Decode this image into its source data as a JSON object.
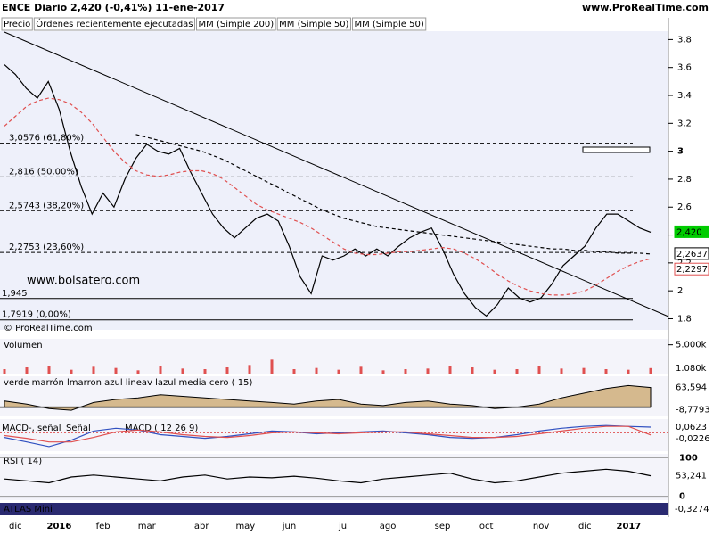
{
  "header": {
    "title": "ENCE  Diario  2,420 (-0,41%)  11-ene-2017",
    "site": "www.ProRealTime.com",
    "copyright": "© ProRealTime.com",
    "watermark": "www.bolsatero.com"
  },
  "legend": [
    "Precio",
    "Órdenes recientemente ejecutadas",
    "MM (Simple 200)",
    "MM (Simple 50)",
    "MM (Simple 50)"
  ],
  "chart_data": [
    {
      "type": "line",
      "categories": [
        null,
        "dic",
        null,
        null,
        null,
        "2016",
        null,
        null,
        null,
        "feb",
        null,
        null,
        null,
        "mar",
        null,
        null,
        null,
        null,
        "abr",
        null,
        null,
        null,
        "may",
        null,
        null,
        null,
        "jun",
        null,
        null,
        null,
        null,
        "jul",
        null,
        null,
        null,
        "ago",
        null,
        null,
        null,
        null,
        "sep",
        null,
        null,
        null,
        "oct",
        null,
        null,
        null,
        null,
        "nov",
        null,
        null,
        null,
        "dic",
        null,
        null,
        null,
        "2017",
        null,
        null
      ],
      "series": [
        {
          "name": "Precio",
          "color": "#000000",
          "values": [
            3.62,
            3.55,
            3.45,
            3.38,
            3.5,
            3.3,
            3.0,
            2.75,
            2.55,
            2.7,
            2.6,
            2.8,
            2.95,
            3.05,
            3.0,
            2.98,
            3.02,
            2.85,
            2.7,
            2.55,
            2.45,
            2.38,
            2.45,
            2.52,
            2.55,
            2.5,
            2.32,
            2.1,
            1.98,
            2.25,
            2.22,
            2.25,
            2.3,
            2.25,
            2.3,
            2.25,
            2.32,
            2.38,
            2.42,
            2.45,
            2.3,
            2.12,
            1.98,
            1.88,
            1.82,
            1.9,
            2.02,
            1.95,
            1.92,
            1.95,
            2.05,
            2.18,
            2.25,
            2.32,
            2.45,
            2.55,
            2.55,
            2.5,
            2.45,
            2.42
          ]
        },
        {
          "name": "MM (Simple 200)",
          "color": "#000000",
          "dash": true,
          "values": [
            null,
            null,
            null,
            null,
            null,
            null,
            null,
            null,
            null,
            null,
            null,
            null,
            3.12,
            3.1,
            3.08,
            3.06,
            3.04,
            3.02,
            3.0,
            2.97,
            2.94,
            2.9,
            2.86,
            2.82,
            2.78,
            2.74,
            2.7,
            2.66,
            2.62,
            2.58,
            2.55,
            2.52,
            2.5,
            2.48,
            2.46,
            2.45,
            2.44,
            2.43,
            2.42,
            2.41,
            2.4,
            2.39,
            2.38,
            2.37,
            2.36,
            2.35,
            2.34,
            2.33,
            2.32,
            2.31,
            2.3,
            2.3,
            2.29,
            2.29,
            2.28,
            2.28,
            2.27,
            2.27,
            2.27,
            2.2637
          ]
        },
        {
          "name": "MM (Simple 50)",
          "color": "#e05050",
          "dash": true,
          "values": [
            3.18,
            3.25,
            3.32,
            3.36,
            3.38,
            3.37,
            3.34,
            3.28,
            3.2,
            3.1,
            3.0,
            2.92,
            2.86,
            2.83,
            2.82,
            2.83,
            2.85,
            2.86,
            2.86,
            2.84,
            2.8,
            2.74,
            2.68,
            2.62,
            2.58,
            2.55,
            2.52,
            2.49,
            2.45,
            2.4,
            2.35,
            2.3,
            2.27,
            2.26,
            2.26,
            2.27,
            2.28,
            2.28,
            2.29,
            2.3,
            2.31,
            2.3,
            2.27,
            2.23,
            2.18,
            2.12,
            2.07,
            2.03,
            2.0,
            1.98,
            1.97,
            1.97,
            1.98,
            2.0,
            2.04,
            2.09,
            2.14,
            2.18,
            2.21,
            2.2297
          ]
        }
      ],
      "ylim": [
        1.72,
        3.86
      ],
      "yticks": [
        {
          "value": 1.8,
          "label": "1,8"
        },
        2,
        {
          "value": 2.2,
          "label": "2,2"
        },
        {
          "value": 2.4,
          "label": "2,4"
        },
        {
          "value": 2.6,
          "label": "2,6"
        },
        {
          "value": 2.8,
          "label": "2,8"
        },
        3,
        {
          "value": 3.2,
          "label": "3,2"
        },
        {
          "value": 3.4,
          "label": "3,4"
        },
        {
          "value": 3.6,
          "label": "3,6"
        },
        {
          "value": 3.8,
          "label": "3,8"
        }
      ],
      "levels": [
        {
          "value": 3.0576,
          "label": "3,0576 (61,80%)"
        },
        {
          "value": 2.816,
          "label": "2,816 (50,00%)"
        },
        {
          "value": 2.5743,
          "label": "2,5743 (38,20%)"
        },
        {
          "value": 2.2753,
          "label": "2,2753 (23,60%)"
        },
        {
          "value": 1.945,
          "label": "1,945"
        },
        {
          "value": 1.7919,
          "label": "1,7919 (0,00%)"
        }
      ],
      "axis_labels": [
        {
          "value": 2.42,
          "label": "2,420",
          "color": "#00cc00"
        },
        {
          "value": 2.2637,
          "label": "2,2637",
          "color": "#000000"
        },
        {
          "value": 2.2297,
          "label": "2,2297",
          "color": "#e05050"
        }
      ]
    },
    {
      "type": "bar",
      "title": "Volumen",
      "color": "#e05050",
      "values": [
        900,
        1200,
        1500,
        800,
        1300,
        1100,
        700,
        1400,
        1000,
        900,
        1200,
        1600,
        2500,
        900,
        1100,
        800,
        1300,
        700,
        900,
        1000,
        1400,
        1200,
        800,
        900,
        1500,
        1000,
        1100,
        900,
        800,
        1080
      ],
      "value_labels": [
        null,
        null,
        null,
        null,
        null,
        null,
        null,
        null,
        null,
        null,
        null,
        null,
        null,
        null,
        null,
        null,
        null,
        null,
        null,
        null,
        null,
        null,
        null,
        null,
        null,
        null,
        null,
        null,
        null,
        "1.080k"
      ],
      "ylim": [
        0,
        6000
      ],
      "yticks": [
        {
          "value": 5000,
          "label": "5.000k"
        }
      ]
    },
    {
      "type": "area",
      "title": "verde  marrón  lmarron  azul  lineav  lazul  media  cero ( 15)",
      "series": [
        {
          "name": "verde",
          "color": "#c8a060",
          "values": [
            20,
            10,
            -5,
            -10,
            15,
            25,
            30,
            40,
            35,
            30,
            25,
            20,
            15,
            10,
            20,
            25,
            10,
            5,
            15,
            20,
            10,
            5,
            -5,
            0,
            10,
            30,
            45,
            60,
            70,
            63.594
          ]
        }
      ],
      "value_labels": [
        "63,594",
        "-8,7793"
      ],
      "extra": [
        -8.7793
      ],
      "ylim": [
        -30,
        100
      ]
    },
    {
      "type": "line",
      "title": "MACD ( 12 26 9)",
      "legend": [
        "MACD-, señal",
        "Señal"
      ],
      "series": [
        {
          "name": "MACD",
          "color": "#3050c0",
          "values": [
            -0.05,
            -0.1,
            -0.15,
            -0.08,
            0.02,
            0.05,
            0.03,
            -0.02,
            -0.04,
            -0.06,
            -0.04,
            -0.01,
            0.02,
            0.01,
            -0.01,
            0,
            0.01,
            0.02,
            0,
            -0.02,
            -0.05,
            -0.06,
            -0.05,
            -0.02,
            0.02,
            0.05,
            0.07,
            0.08,
            0.07,
            0.0623
          ]
        },
        {
          "name": "Señal",
          "color": "#e05050",
          "values": [
            -0.03,
            -0.06,
            -0.1,
            -0.1,
            -0.05,
            0.01,
            0.03,
            0.01,
            -0.02,
            -0.04,
            -0.05,
            -0.03,
            0,
            0.01,
            0,
            -0.01,
            0,
            0.01,
            0.01,
            -0.01,
            -0.03,
            -0.05,
            -0.05,
            -0.04,
            -0.01,
            0.02,
            0.05,
            0.07,
            0.07,
            -0.0226
          ]
        }
      ],
      "value_labels": [
        "0,0623",
        "-0,0226"
      ],
      "ylim": [
        -0.2,
        0.15
      ]
    },
    {
      "type": "line",
      "title": "RSI ( 14)",
      "series": [
        {
          "name": "RSI",
          "color": "#000000",
          "values": [
            45,
            40,
            35,
            50,
            55,
            50,
            45,
            40,
            50,
            55,
            45,
            50,
            48,
            52,
            47,
            40,
            35,
            45,
            50,
            55,
            60,
            45,
            35,
            40,
            50,
            60,
            65,
            70,
            65,
            53.241
          ]
        }
      ],
      "value_labels": [
        null,
        null,
        null,
        null,
        null,
        null,
        null,
        null,
        null,
        null,
        null,
        null,
        null,
        null,
        null,
        null,
        null,
        null,
        null,
        null,
        null,
        null,
        null,
        null,
        null,
        null,
        null,
        null,
        null,
        "53,241"
      ],
      "ylim": [
        -10,
        110
      ],
      "yticks": [
        0,
        100
      ]
    },
    {
      "type": "label",
      "title": "ATLAS Mini",
      "value_labels": [
        "-0,3274"
      ],
      "values": [
        -0.3274
      ]
    }
  ]
}
